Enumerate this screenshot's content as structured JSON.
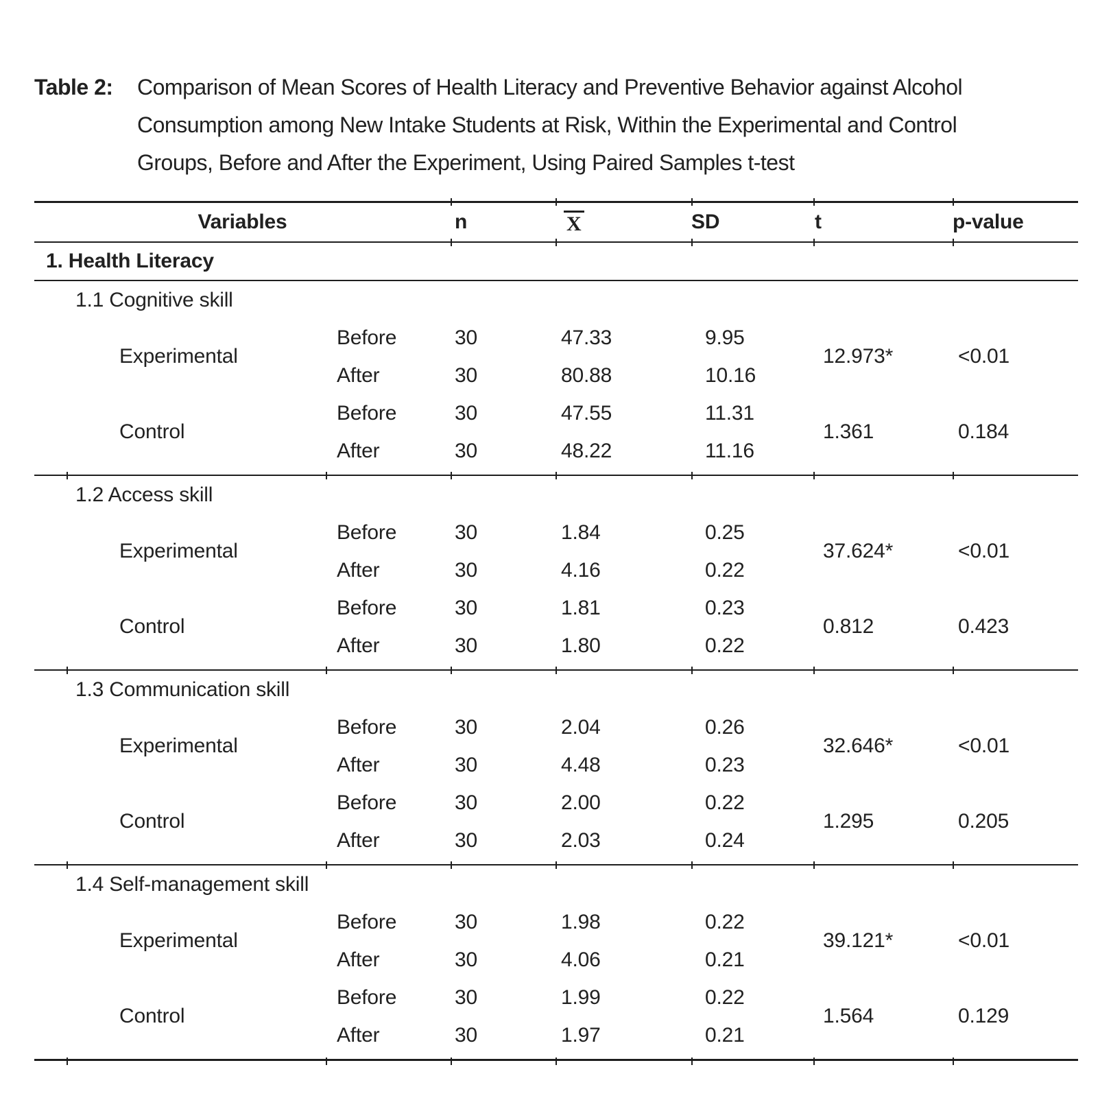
{
  "title": {
    "label": "Table 2:",
    "lines": [
      "Comparison of Mean Scores of Health Literacy and Preventive Behavior against Alcohol",
      "Consumption among New Intake Students at Risk, Within the Experimental and Control",
      "Groups, Before and After the Experiment, Using Paired Samples t-test"
    ]
  },
  "table": {
    "headers": {
      "variables": "Variables",
      "n": "n",
      "mean": "X",
      "sd": "SD",
      "t": "t",
      "p": "p-value"
    },
    "section": {
      "heading": "1. Health Literacy",
      "subsections": [
        {
          "heading": "1.1 Cognitive skill",
          "groups": [
            {
              "label": "Experimental",
              "rows": [
                {
                  "time": "Before",
                  "n": "30",
                  "mean": "47.33",
                  "sd": "9.95"
                },
                {
                  "time": "After",
                  "n": "30",
                  "mean": "80.88",
                  "sd": "10.16"
                }
              ],
              "t": "12.973*",
              "p": "<0.01"
            },
            {
              "label": "Control",
              "rows": [
                {
                  "time": "Before",
                  "n": "30",
                  "mean": "47.55",
                  "sd": "11.31"
                },
                {
                  "time": "After",
                  "n": "30",
                  "mean": "48.22",
                  "sd": "11.16"
                }
              ],
              "t": "1.361",
              "p": "0.184"
            }
          ]
        },
        {
          "heading": "1.2 Access skill",
          "groups": [
            {
              "label": "Experimental",
              "rows": [
                {
                  "time": "Before",
                  "n": "30",
                  "mean": "1.84",
                  "sd": "0.25"
                },
                {
                  "time": "After",
                  "n": "30",
                  "mean": "4.16",
                  "sd": "0.22"
                }
              ],
              "t": "37.624*",
              "p": "<0.01"
            },
            {
              "label": "Control",
              "rows": [
                {
                  "time": "Before",
                  "n": "30",
                  "mean": "1.81",
                  "sd": "0.23"
                },
                {
                  "time": "After",
                  "n": "30",
                  "mean": "1.80",
                  "sd": "0.22"
                }
              ],
              "t": "0.812",
              "p": "0.423"
            }
          ]
        },
        {
          "heading": "1.3 Communication skill",
          "groups": [
            {
              "label": "Experimental",
              "rows": [
                {
                  "time": "Before",
                  "n": "30",
                  "mean": "2.04",
                  "sd": "0.26"
                },
                {
                  "time": "After",
                  "n": "30",
                  "mean": "4.48",
                  "sd": "0.23"
                }
              ],
              "t": "32.646*",
              "p": "<0.01"
            },
            {
              "label": "Control",
              "rows": [
                {
                  "time": "Before",
                  "n": "30",
                  "mean": "2.00",
                  "sd": "0.22"
                },
                {
                  "time": "After",
                  "n": "30",
                  "mean": "2.03",
                  "sd": "0.24"
                }
              ],
              "t": "1.295",
              "p": "0.205"
            }
          ]
        },
        {
          "heading": "1.4 Self-management skill",
          "groups": [
            {
              "label": "Experimental",
              "rows": [
                {
                  "time": "Before",
                  "n": "30",
                  "mean": "1.98",
                  "sd": "0.22"
                },
                {
                  "time": "After",
                  "n": "30",
                  "mean": "4.06",
                  "sd": "0.21"
                }
              ],
              "t": "39.121*",
              "p": "<0.01"
            },
            {
              "label": "Control",
              "rows": [
                {
                  "time": "Before",
                  "n": "30",
                  "mean": "1.99",
                  "sd": "0.22"
                },
                {
                  "time": "After",
                  "n": "30",
                  "mean": "1.97",
                  "sd": "0.21"
                }
              ],
              "t": "1.564",
              "p": "0.129"
            }
          ]
        }
      ]
    }
  }
}
